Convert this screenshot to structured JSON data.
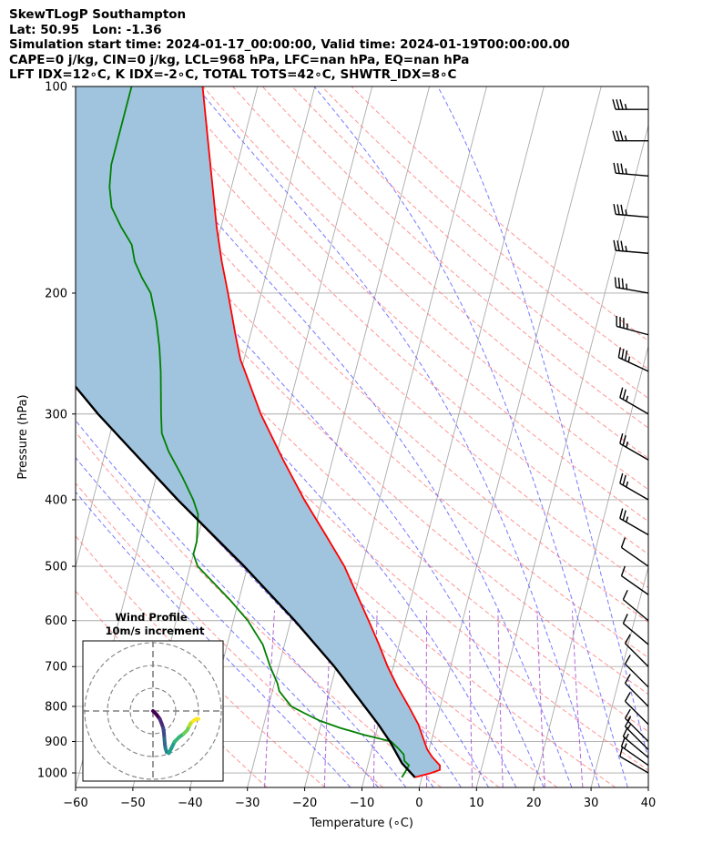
{
  "header": {
    "line1": "SkewTLogP Southampton",
    "line2": "Lat: 50.95   Lon: -1.36",
    "line3": "Simulation start time: 2024-01-17_00:00:00, Valid time: 2024-01-19T00:00:00.00",
    "line4": "CAPE=0 j/kg, CIN=0 j/kg, LCL=968 hPa, LFC=nan hPa, EQ=nan hPa",
    "line5": "LFT IDX=12∘C, K IDX=-2∘C, TOTAL TOTS=42∘C, SHWTR_IDX=8∘C"
  },
  "chart_data": [
    {
      "type": "line",
      "subtype": "skew-t log-p",
      "xlabel": "Temperature (∘C)",
      "ylabel": "Pressure (hPa)",
      "xlim": [
        -60,
        40
      ],
      "ylim": [
        1050,
        100
      ],
      "y_scale": "log",
      "grid": true,
      "x_ticks": [
        "−60",
        "−50",
        "−40",
        "−30",
        "−20",
        "−10",
        "0",
        "10",
        "20",
        "30",
        "40"
      ],
      "x_tick_values": [
        -60,
        -50,
        -40,
        -30,
        -20,
        -10,
        0,
        10,
        20,
        30,
        40
      ],
      "y_ticks": [
        "100",
        "200",
        "300",
        "400",
        "500",
        "600",
        "700",
        "800",
        "900",
        "1000"
      ],
      "y_tick_values": [
        100,
        200,
        300,
        400,
        500,
        600,
        700,
        800,
        900,
        1000
      ],
      "colors": {
        "temperature": "#ff0000",
        "dewpoint": "#008000",
        "parcel": "#000000",
        "fill": "#a0c4de",
        "dry_adiabats": "#ff7070",
        "moist_adiabats": "#6060ff",
        "mixing_ratio": "#9933cc",
        "isotherms": "#aaaaaa"
      },
      "series": [
        {
          "role": "temperature",
          "points": [
            [
              1015,
              -1.2
            ],
            [
              1000,
              1.5
            ],
            [
              990,
              2.8
            ],
            [
              975,
              2.6
            ],
            [
              950,
              1.0
            ],
            [
              925,
              -0.3
            ],
            [
              900,
              -1.2
            ],
            [
              850,
              -3.0
            ],
            [
              800,
              -5.5
            ],
            [
              750,
              -8.3
            ],
            [
              700,
              -11.0
            ],
            [
              650,
              -13.5
            ],
            [
              600,
              -16.4
            ],
            [
              550,
              -19.6
            ],
            [
              500,
              -23.1
            ],
            [
              450,
              -27.8
            ],
            [
              400,
              -33.1
            ],
            [
              350,
              -38.6
            ],
            [
              300,
              -44.6
            ],
            [
              260,
              -49.3
            ],
            [
              250,
              -50.6
            ],
            [
              230,
              -52.6
            ],
            [
              200,
              -55.8
            ],
            [
              180,
              -58.3
            ],
            [
              160,
              -60.8
            ],
            [
              140,
              -63.3
            ],
            [
              120,
              -66.2
            ],
            [
              100,
              -69.6
            ]
          ]
        },
        {
          "role": "dewpoint",
          "points": [
            [
              1015,
              -3.5
            ],
            [
              1000,
              -3.2
            ],
            [
              975,
              -2.8
            ],
            [
              960,
              -3.8
            ],
            [
              940,
              -4.2
            ],
            [
              920,
              -5.5
            ],
            [
              900,
              -7.0
            ],
            [
              880,
              -12.0
            ],
            [
              860,
              -16.5
            ],
            [
              840,
              -20.3
            ],
            [
              820,
              -23.2
            ],
            [
              800,
              -26.0
            ],
            [
              780,
              -27.4
            ],
            [
              760,
              -28.8
            ],
            [
              740,
              -29.5
            ],
            [
              700,
              -31.5
            ],
            [
              650,
              -33.8
            ],
            [
              600,
              -37.5
            ],
            [
              560,
              -41.5
            ],
            [
              530,
              -45.0
            ],
            [
              500,
              -48.7
            ],
            [
              480,
              -50.0
            ],
            [
              460,
              -50.0
            ],
            [
              420,
              -51.0
            ],
            [
              400,
              -52.5
            ],
            [
              370,
              -55.5
            ],
            [
              340,
              -59.0
            ],
            [
              320,
              -61.0
            ],
            [
              300,
              -62.0
            ],
            [
              260,
              -64.0
            ],
            [
              240,
              -65.3
            ],
            [
              220,
              -67.0
            ],
            [
              200,
              -69.3
            ],
            [
              190,
              -71.5
            ],
            [
              180,
              -73.5
            ],
            [
              170,
              -74.8
            ],
            [
              160,
              -77.5
            ],
            [
              150,
              -80.0
            ],
            [
              140,
              -81.3
            ],
            [
              130,
              -82.0
            ],
            [
              120,
              -82.0
            ],
            [
              100,
              -82.0
            ]
          ]
        },
        {
          "role": "parcel",
          "points": [
            [
              1015,
              -1.2
            ],
            [
              968,
              -4.1
            ],
            [
              900,
              -7.2
            ],
            [
              850,
              -10.0
            ],
            [
              800,
              -13.2
            ],
            [
              700,
              -20.3
            ],
            [
              600,
              -29.3
            ],
            [
              500,
              -40.6
            ],
            [
              400,
              -55.2
            ],
            [
              300,
              -73.0
            ],
            [
              250,
              -83.3
            ],
            [
              200,
              -95.0
            ],
            [
              150,
              -109.0
            ],
            [
              100,
              -126.0
            ]
          ]
        }
      ],
      "wind_barbs": [
        {
          "p": 1000,
          "kt": 10,
          "dir": 300
        },
        {
          "p": 975,
          "kt": 15,
          "dir": 305
        },
        {
          "p": 950,
          "kt": 15,
          "dir": 310
        },
        {
          "p": 925,
          "kt": 15,
          "dir": 315
        },
        {
          "p": 900,
          "kt": 15,
          "dir": 315
        },
        {
          "p": 850,
          "kt": 10,
          "dir": 315
        },
        {
          "p": 800,
          "kt": 10,
          "dir": 315
        },
        {
          "p": 750,
          "kt": 10,
          "dir": 315
        },
        {
          "p": 700,
          "kt": 10,
          "dir": 315
        },
        {
          "p": 650,
          "kt": 10,
          "dir": 310
        },
        {
          "p": 600,
          "kt": 10,
          "dir": 310
        },
        {
          "p": 550,
          "kt": 10,
          "dir": 305
        },
        {
          "p": 500,
          "kt": 10,
          "dir": 305
        },
        {
          "p": 450,
          "kt": 25,
          "dir": 300
        },
        {
          "p": 400,
          "kt": 25,
          "dir": 300
        },
        {
          "p": 350,
          "kt": 25,
          "dir": 300
        },
        {
          "p": 300,
          "kt": 25,
          "dir": 300
        },
        {
          "p": 260,
          "kt": 35,
          "dir": 295
        },
        {
          "p": 230,
          "kt": 35,
          "dir": 285
        },
        {
          "p": 200,
          "kt": 35,
          "dir": 280
        },
        {
          "p": 175,
          "kt": 35,
          "dir": 275
        },
        {
          "p": 155,
          "kt": 35,
          "dir": 275
        },
        {
          "p": 135,
          "kt": 35,
          "dir": 275
        },
        {
          "p": 120,
          "kt": 35,
          "dir": 270
        },
        {
          "p": 108,
          "kt": 35,
          "dir": 270
        }
      ]
    },
    {
      "type": "line",
      "subtype": "hodograph",
      "title": "Wind Profile",
      "subtitle": "10m/s increment",
      "rings": [
        10,
        20,
        30
      ],
      "grid": true,
      "colormap": "viridis",
      "points": [
        [
          0,
          0
        ],
        [
          1.5,
          -1.5
        ],
        [
          3,
          -3.5
        ],
        [
          3.8,
          -5.5
        ],
        [
          4.5,
          -7.5
        ],
        [
          4.8,
          -9.5
        ],
        [
          5,
          -12
        ],
        [
          5.2,
          -14.5
        ],
        [
          5.5,
          -16.5
        ],
        [
          6,
          -18
        ],
        [
          7,
          -18.5
        ],
        [
          8,
          -16.5
        ],
        [
          9.5,
          -13.5
        ],
        [
          11.5,
          -11.5
        ],
        [
          13.5,
          -10
        ],
        [
          15,
          -8.5
        ],
        [
          16,
          -6.5
        ],
        [
          16.5,
          -5.5
        ],
        [
          17.5,
          -4.5
        ],
        [
          19,
          -3.5
        ],
        [
          20,
          -3.5
        ]
      ]
    }
  ]
}
